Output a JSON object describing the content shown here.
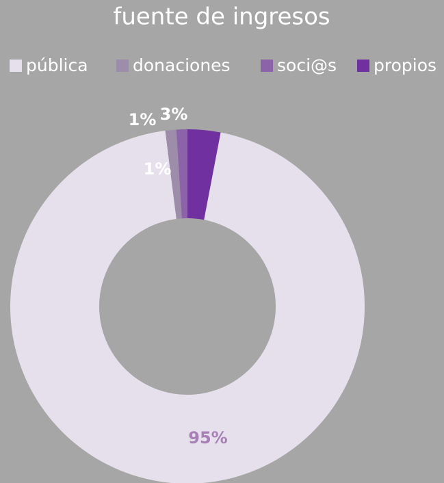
{
  "chart_data": {
    "type": "donut",
    "title": "fuente de ingresos",
    "categories": [
      "pública",
      "donaciones",
      "soci@s",
      "propios"
    ],
    "values": [
      95,
      1,
      1,
      3
    ],
    "value_labels": [
      "95%",
      "1%",
      "1%",
      "3%"
    ],
    "colors": [
      "#e6e0ec",
      "#9d8dab",
      "#8c62a9",
      "#7030a0"
    ],
    "legend": "top"
  }
}
